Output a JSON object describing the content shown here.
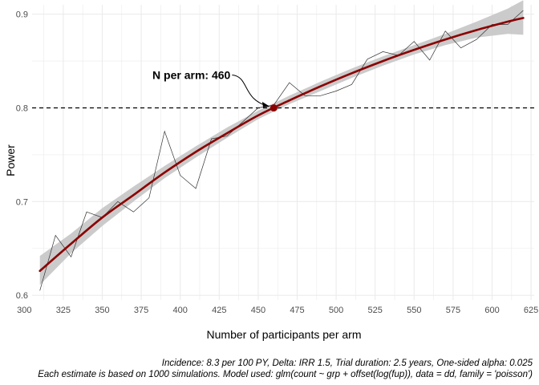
{
  "chart_data": {
    "type": "line",
    "xlabel": "Number of participants per arm",
    "ylabel": "Power",
    "xlim": [
      305,
      627
    ],
    "ylim": [
      0.595,
      0.91
    ],
    "x_ticks": [
      300,
      325,
      350,
      375,
      400,
      425,
      450,
      475,
      500,
      525,
      550,
      575,
      600,
      625
    ],
    "y_ticks": [
      0.6,
      0.7,
      0.8,
      0.9
    ],
    "x_tick_labels": [
      "300",
      "325",
      "350",
      "375",
      "400",
      "425",
      "450",
      "475",
      "500",
      "525",
      "550",
      "575",
      "600",
      "625"
    ],
    "y_tick_labels": [
      "0.6",
      "0.7",
      "0.8",
      "0.9"
    ],
    "grid": true,
    "colors": {
      "raw_line": "#333333",
      "fit_line": "#8b0000",
      "ribbon": "#c8c8c8",
      "grid": "#ebebeb",
      "reference": "#000000"
    },
    "series": [
      {
        "kind": "raw",
        "x": [
          310,
          320,
          330,
          340,
          350,
          360,
          370,
          380,
          390,
          400,
          410,
          420,
          430,
          440,
          450,
          460,
          470,
          480,
          490,
          500,
          510,
          520,
          530,
          540,
          550,
          560,
          570,
          580,
          590,
          600,
          610,
          620
        ],
        "y": [
          0.605,
          0.664,
          0.641,
          0.689,
          0.683,
          0.7,
          0.689,
          0.704,
          0.775,
          0.728,
          0.714,
          0.767,
          0.77,
          0.785,
          0.8,
          0.803,
          0.827,
          0.813,
          0.813,
          0.818,
          0.825,
          0.852,
          0.86,
          0.856,
          0.871,
          0.851,
          0.882,
          0.864,
          0.873,
          0.889,
          0.889,
          0.904
        ]
      },
      {
        "kind": "fit",
        "x": [
          310,
          330,
          350,
          370,
          390,
          410,
          430,
          450,
          470,
          490,
          510,
          530,
          550,
          570,
          590,
          610,
          620
        ],
        "y": [
          0.626,
          0.655,
          0.683,
          0.707,
          0.731,
          0.753,
          0.773,
          0.792,
          0.808,
          0.823,
          0.837,
          0.85,
          0.862,
          0.873,
          0.883,
          0.892,
          0.896
        ],
        "lower": [
          0.611,
          0.645,
          0.674,
          0.7,
          0.725,
          0.747,
          0.768,
          0.788,
          0.804,
          0.818,
          0.832,
          0.845,
          0.857,
          0.867,
          0.875,
          0.879,
          0.878
        ],
        "upper": [
          0.642,
          0.666,
          0.693,
          0.716,
          0.738,
          0.759,
          0.779,
          0.797,
          0.813,
          0.828,
          0.842,
          0.855,
          0.867,
          0.879,
          0.892,
          0.906,
          0.915
        ]
      }
    ],
    "reference_line": {
      "y": 0.8
    },
    "highlight_point": {
      "x": 460,
      "y": 0.8
    },
    "annotation": {
      "text": "N per arm: 460",
      "x": 460,
      "y": 0.8
    },
    "caption": [
      "Incidence: 8.3 per 100 PY, Delta: IRR 1.5, Trial duration: 2.5 years, One-sided alpha: 0.025",
      "Each estimate is based on 1000 simulations. Model used: glm(count ~ grp + offset(log(fup)), data = dd, family = 'poisson')"
    ]
  }
}
